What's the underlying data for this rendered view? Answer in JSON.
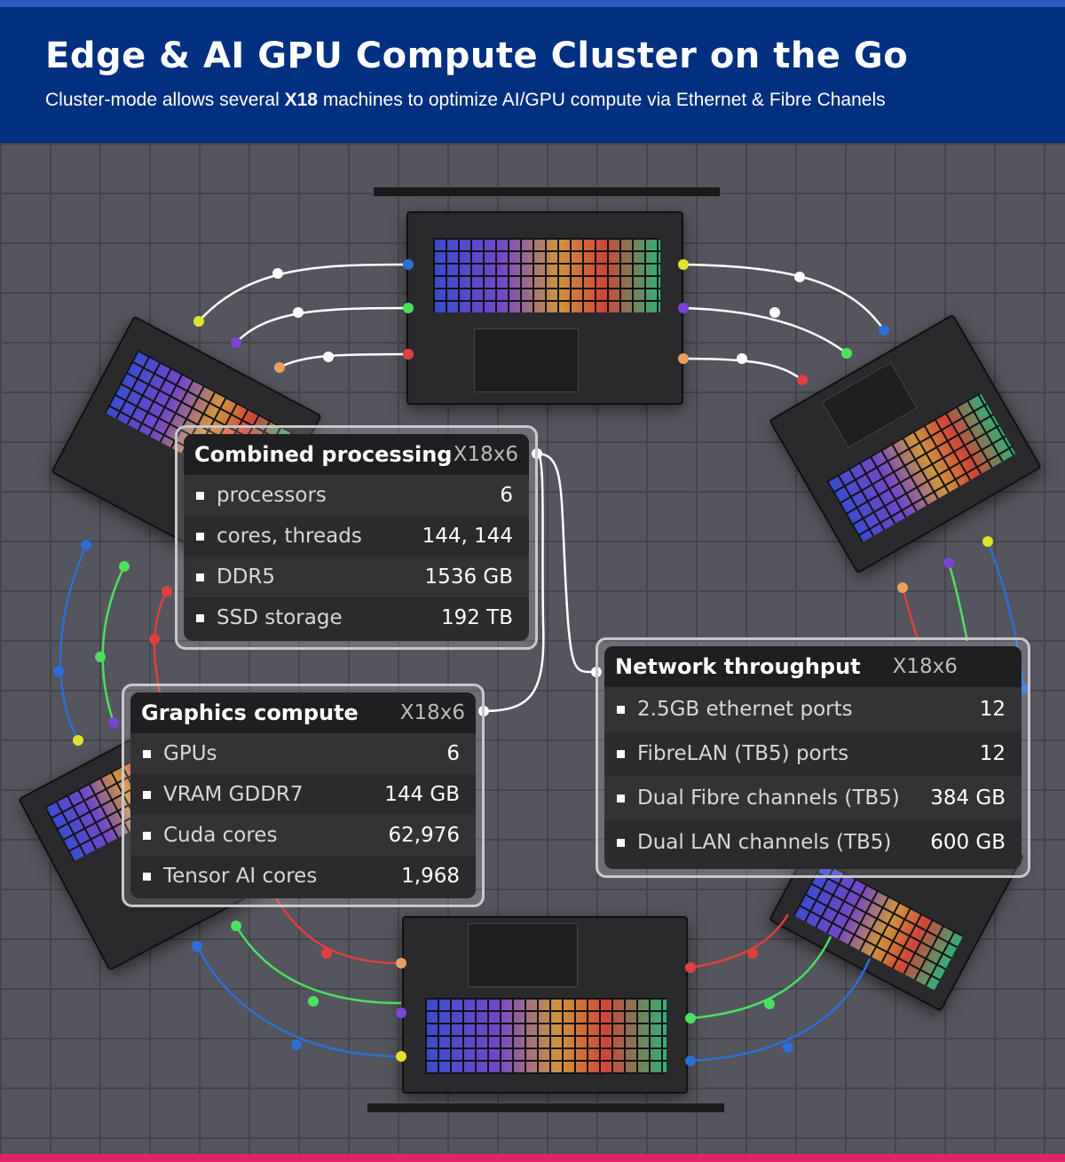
{
  "header": {
    "title": "Edge &  AI GPU Compute Cluster on the Go",
    "subtitle_pre": "Cluster-mode allows several ",
    "subtitle_bold": "X18",
    "subtitle_post": " machines to optimize AI/GPU compute via Ethernet & Fibre Chanels"
  },
  "colors": {
    "header_bg": "#00307f",
    "stripe_top": "#2b5bbd",
    "stripe_bottom": "#e0246a",
    "wire": "#ffffff",
    "dot_blue": "#2d6fd6",
    "dot_green": "#4be060",
    "dot_red": "#e04040",
    "dot_yellow": "#e0e030",
    "dot_purple": "#7a44d8",
    "dot_orange": "#e8a060"
  },
  "panels": {
    "combined": {
      "title": "Combined processing",
      "model": "X18x6",
      "rows": [
        {
          "label": "processors",
          "value": "6"
        },
        {
          "label": "cores, threads",
          "value": "144, 144"
        },
        {
          "label": "DDR5",
          "value": "1536 GB"
        },
        {
          "label": "SSD storage",
          "value": "192 TB"
        }
      ]
    },
    "graphics": {
      "title": "Graphics compute",
      "model": "X18x6",
      "rows": [
        {
          "label": "GPUs",
          "value": "6"
        },
        {
          "label": "VRAM GDDR7",
          "value": "144 GB"
        },
        {
          "label": "Cuda cores",
          "value": "62,976"
        },
        {
          "label": "Tensor AI cores",
          "value": "1,968"
        }
      ]
    },
    "network": {
      "title": "Network throughput",
      "model": "X18x6",
      "rows": [
        {
          "label": "2.5GB ethernet ports",
          "value": "12"
        },
        {
          "label": "FibreLAN (TB5) ports",
          "value": "12"
        },
        {
          "label": "Dual Fibre channels (TB5)",
          "value": "384 GB"
        },
        {
          "label": "Dual LAN channels (TB5)",
          "value": "600 GB"
        }
      ]
    }
  }
}
